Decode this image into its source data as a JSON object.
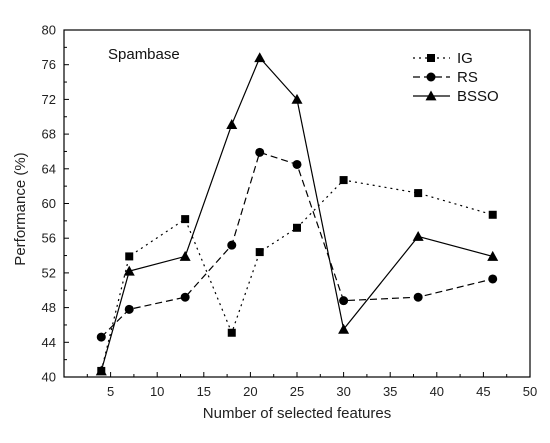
{
  "chart_data": {
    "type": "line",
    "title": "",
    "annotation": "Spambase",
    "xlabel": "Number of selected features",
    "ylabel": "Performance (%)",
    "xlim": [
      0,
      50
    ],
    "ylim": [
      40,
      80
    ],
    "xticks": [
      5,
      10,
      15,
      20,
      25,
      30,
      35,
      40,
      45,
      50
    ],
    "yticks": [
      40,
      44,
      48,
      52,
      56,
      60,
      64,
      68,
      72,
      76,
      80
    ],
    "grid": false,
    "legend_position": "top-right",
    "series": [
      {
        "name": "IG",
        "marker": "square",
        "dash": "dotted",
        "x": [
          4,
          7,
          13,
          18,
          21,
          25,
          30,
          38,
          46
        ],
        "y": [
          40.7,
          53.9,
          58.2,
          45.1,
          54.4,
          57.2,
          62.7,
          61.2,
          58.7
        ]
      },
      {
        "name": "RS",
        "marker": "circle",
        "dash": "dashed",
        "x": [
          4,
          7,
          13,
          18,
          21,
          25,
          30,
          38,
          46
        ],
        "y": [
          44.6,
          47.8,
          49.2,
          55.2,
          65.9,
          64.5,
          48.8,
          49.2,
          51.3
        ]
      },
      {
        "name": "BSSO",
        "marker": "triangle",
        "dash": "solid",
        "x": [
          4,
          7,
          13,
          18,
          21,
          25,
          30,
          38,
          46
        ],
        "y": [
          40.7,
          52.2,
          53.9,
          69.1,
          76.8,
          72.0,
          45.5,
          56.2,
          53.9
        ]
      }
    ]
  }
}
